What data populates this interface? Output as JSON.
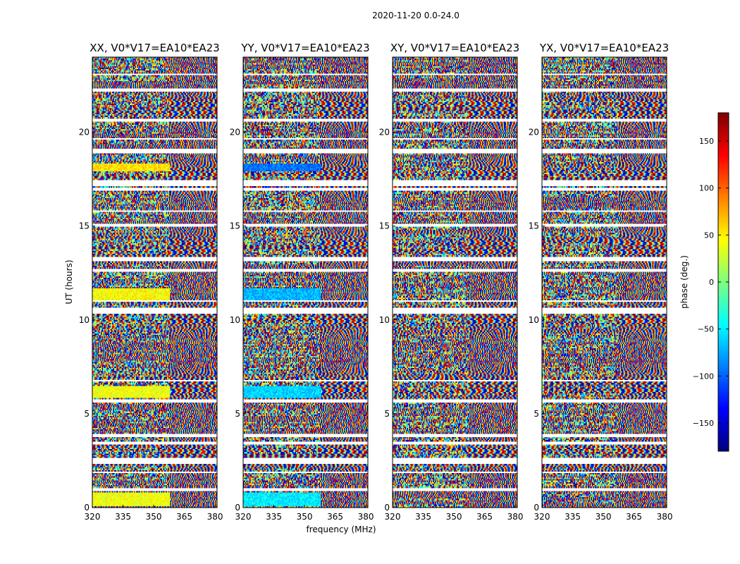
{
  "chart_data": {
    "type": "heatmap",
    "suptitle": "2020-11-20 0.0-24.0",
    "xlabel": "frequency (MHz)",
    "ylabel": "UT (hours)",
    "xlim": [
      320,
      381
    ],
    "ylim": [
      0,
      24
    ],
    "xticks": [
      320,
      335,
      350,
      365,
      380
    ],
    "yticks": [
      0,
      5,
      10,
      15,
      20
    ],
    "panels": [
      {
        "title": "XX, V0*V17=EA10*EA23",
        "polarization": "XX"
      },
      {
        "title": "YY, V0*V17=EA10*EA23",
        "polarization": "YY"
      },
      {
        "title": "XY, V0*V17=EA10*EA23",
        "polarization": "XY"
      },
      {
        "title": "YX, V0*V17=EA10*EA23",
        "polarization": "YX"
      }
    ],
    "colorbar": {
      "label": "phase (deg.)",
      "colormap": "jet",
      "range": [
        -180,
        180
      ],
      "ticks": [
        150,
        100,
        50,
        0,
        -50,
        -100,
        -150
      ],
      "tick_labels": [
        "150",
        "100",
        "50",
        "0",
        "−50",
        "−100",
        "−150"
      ],
      "colors": [
        "#00007f",
        "#0000ff",
        "#007fff",
        "#00ffff",
        "#7fff7f",
        "#ffff00",
        "#ff7f00",
        "#ff0000",
        "#7f0000"
      ]
    },
    "flagged_ut_ranges": [
      [
        23.05,
        23.15
      ],
      [
        22.15,
        22.3
      ],
      [
        20.55,
        20.75
      ],
      [
        19.6,
        19.7
      ],
      [
        18.9,
        19.15
      ],
      [
        17.15,
        17.4
      ],
      [
        16.9,
        17.0
      ],
      [
        15.75,
        15.85
      ],
      [
        14.95,
        15.1
      ],
      [
        13.15,
        13.35
      ],
      [
        12.6,
        12.75
      ],
      [
        10.95,
        11.05
      ],
      [
        10.35,
        10.6
      ],
      [
        6.7,
        6.8
      ],
      [
        5.6,
        5.8
      ],
      [
        3.75,
        3.95
      ],
      [
        3.4,
        3.5
      ],
      [
        2.3,
        2.6
      ],
      [
        1.85,
        1.95
      ],
      [
        0.85,
        1.0
      ]
    ],
    "coherent_bands": [
      {
        "ut": [
          17.9,
          18.3
        ],
        "xx": 55,
        "yy": -95,
        "xy": null,
        "yx": null
      },
      {
        "ut": [
          11.0,
          11.7
        ],
        "xx": 45,
        "yy": -70,
        "xy": null,
        "yx": null
      },
      {
        "ut": [
          5.85,
          6.45
        ],
        "xx": 40,
        "yy": -60,
        "xy": null,
        "yx": null
      },
      {
        "ut": [
          0.1,
          0.8
        ],
        "xx": 40,
        "yy": -50,
        "xy": null,
        "yx": null
      }
    ]
  }
}
